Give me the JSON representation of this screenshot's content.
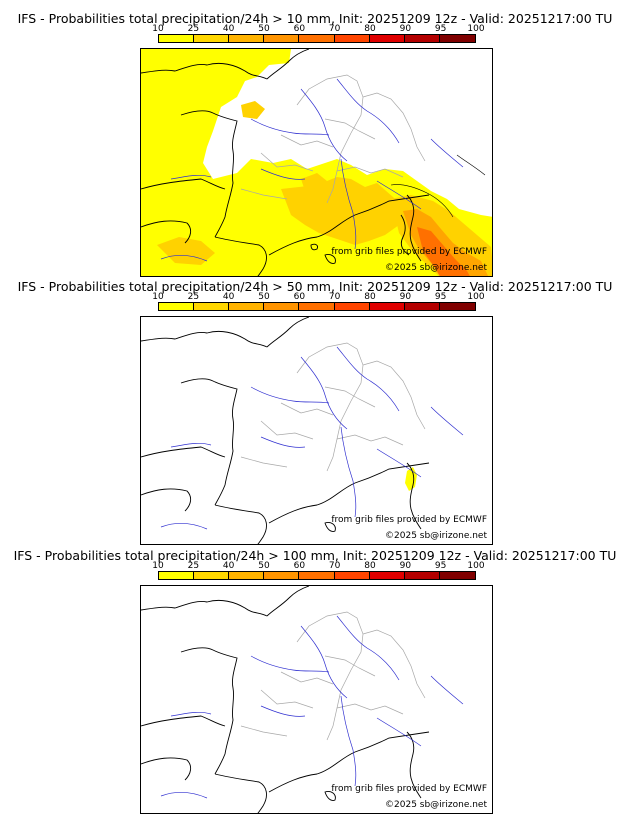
{
  "legend": {
    "ticks": [
      "10",
      "25",
      "40",
      "50",
      "60",
      "70",
      "80",
      "90",
      "95",
      "100"
    ],
    "colors": [
      "#ffff00",
      "#ffd700",
      "#ffb300",
      "#ff9400",
      "#ff7000",
      "#ff4500",
      "#e00000",
      "#b40000",
      "#800000",
      "#4d0000"
    ]
  },
  "panels": [
    {
      "title": "IFS - Probabilities total precipitation/24h > 10 mm, Init: 20251209 12z - Valid: 20251217:00 TU",
      "credit_source": "from grib files provided by ECMWF",
      "credit_copyright": "©2025 sb@irizone.net"
    },
    {
      "title": "IFS - Probabilities total precipitation/24h > 50 mm, Init: 20251209 12z - Valid: 20251217:00 TU",
      "credit_source": "from grib files provided by ECMWF",
      "credit_copyright": "©2025 sb@irizone.net"
    },
    {
      "title": "IFS - Probabilities total precipitation/24h > 100 mm, Init: 20251209 12z - Valid: 20251217:00 TU",
      "credit_source": "from grib files provided by ECMWF",
      "credit_copyright": "©2025 sb@irizone.net"
    }
  ],
  "colors": {
    "coast": "#000000",
    "borders": "#a8a8a8",
    "rivers": "#3030d0",
    "prob_low": "#ffff00",
    "prob_mid": "#ffd200",
    "prob_high": "#ffa500",
    "prob_peak": "#ff7000"
  }
}
